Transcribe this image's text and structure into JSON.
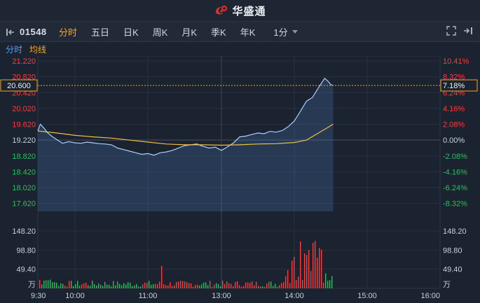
{
  "app": {
    "brand": "华盛通"
  },
  "toolbar": {
    "code": "01548",
    "tabs": [
      "分时",
      "五日",
      "日K",
      "周K",
      "月K",
      "季K",
      "年K"
    ],
    "active_tab": "分时",
    "period": "1分"
  },
  "subtabs": {
    "a": "分时",
    "b": "均线"
  },
  "colors": {
    "up": "#ff3b3b",
    "down": "#23c35a",
    "line": "#a8cfff",
    "avg": "#f0c040",
    "accent": "#f5a623"
  },
  "chart_data": {
    "type": "line",
    "price_axis": {
      "ticks": [
        "21.220",
        "20.820",
        "20.420",
        "20.020",
        "19.620",
        "19.220",
        "18.820",
        "18.420",
        "18.020",
        "17.620"
      ],
      "values": [
        21.22,
        20.82,
        20.42,
        20.02,
        19.62,
        19.22,
        18.82,
        18.42,
        18.02,
        17.62
      ]
    },
    "pct_axis": {
      "ticks": [
        "10.41%",
        "8.32%",
        "6.24%",
        "4.16%",
        "2.08%",
        "0.00%",
        "-2.08%",
        "-4.16%",
        "-6.24%",
        "-8.32%"
      ]
    },
    "crosshair": {
      "price": "20.600",
      "pct": "7.18%"
    },
    "volume_axis": {
      "ticks": [
        "148.20",
        "98.80",
        "49.40"
      ],
      "values": [
        148.2,
        98.8,
        49.4
      ],
      "unit": "万"
    },
    "time_ticks": [
      "9:30",
      "10:00",
      "11:00",
      "13:00",
      "14:00",
      "15:00",
      "16:00"
    ],
    "price_series": [
      [
        "9:30",
        19.45
      ],
      [
        "9:32",
        19.62
      ],
      [
        "9:35",
        19.52
      ],
      [
        "9:38",
        19.4
      ],
      [
        "9:42",
        19.3
      ],
      [
        "9:46",
        19.22
      ],
      [
        "9:50",
        19.14
      ],
      [
        "9:55",
        19.18
      ],
      [
        "10:00",
        19.15
      ],
      [
        "10:05",
        19.14
      ],
      [
        "10:10",
        19.17
      ],
      [
        "10:15",
        19.15
      ],
      [
        "10:20",
        19.13
      ],
      [
        "10:25",
        19.12
      ],
      [
        "10:30",
        19.1
      ],
      [
        "10:35",
        19.02
      ],
      [
        "10:40",
        18.98
      ],
      [
        "10:45",
        18.94
      ],
      [
        "10:50",
        18.9
      ],
      [
        "10:55",
        18.86
      ],
      [
        "11:00",
        18.88
      ],
      [
        "11:05",
        18.84
      ],
      [
        "11:10",
        18.9
      ],
      [
        "11:15",
        18.92
      ],
      [
        "11:20",
        18.96
      ],
      [
        "11:25",
        19.02
      ],
      [
        "11:30",
        19.08
      ],
      [
        "11:35",
        19.1
      ],
      [
        "11:40",
        19.12
      ],
      [
        "11:45",
        19.06
      ],
      [
        "11:50",
        19.02
      ],
      [
        "11:55",
        19.04
      ],
      [
        "13:00",
        18.96
      ],
      [
        "13:05",
        19.05
      ],
      [
        "13:10",
        19.15
      ],
      [
        "13:15",
        19.3
      ],
      [
        "13:20",
        19.32
      ],
      [
        "13:25",
        19.36
      ],
      [
        "13:30",
        19.4
      ],
      [
        "13:35",
        19.38
      ],
      [
        "13:40",
        19.44
      ],
      [
        "13:45",
        19.42
      ],
      [
        "13:50",
        19.46
      ],
      [
        "13:55",
        19.56
      ],
      [
        "14:00",
        19.7
      ],
      [
        "14:05",
        19.95
      ],
      [
        "14:10",
        20.2
      ],
      [
        "14:15",
        20.3
      ],
      [
        "14:20",
        20.55
      ],
      [
        "14:25",
        20.78
      ],
      [
        "14:28",
        20.7
      ],
      [
        "14:30",
        20.62
      ],
      [
        "14:32",
        20.6
      ]
    ],
    "avg_series": [
      [
        "9:30",
        19.45
      ],
      [
        "9:45",
        19.4
      ],
      [
        "10:00",
        19.34
      ],
      [
        "10:15",
        19.3
      ],
      [
        "10:30",
        19.27
      ],
      [
        "10:45",
        19.22
      ],
      [
        "11:00",
        19.17
      ],
      [
        "11:15",
        19.12
      ],
      [
        "11:30",
        19.1
      ],
      [
        "11:45",
        19.1
      ],
      [
        "13:00",
        19.09
      ],
      [
        "13:15",
        19.1
      ],
      [
        "13:30",
        19.12
      ],
      [
        "13:45",
        19.13
      ],
      [
        "14:00",
        19.16
      ],
      [
        "14:10",
        19.22
      ],
      [
        "14:20",
        19.4
      ],
      [
        "14:32",
        19.62
      ]
    ]
  }
}
